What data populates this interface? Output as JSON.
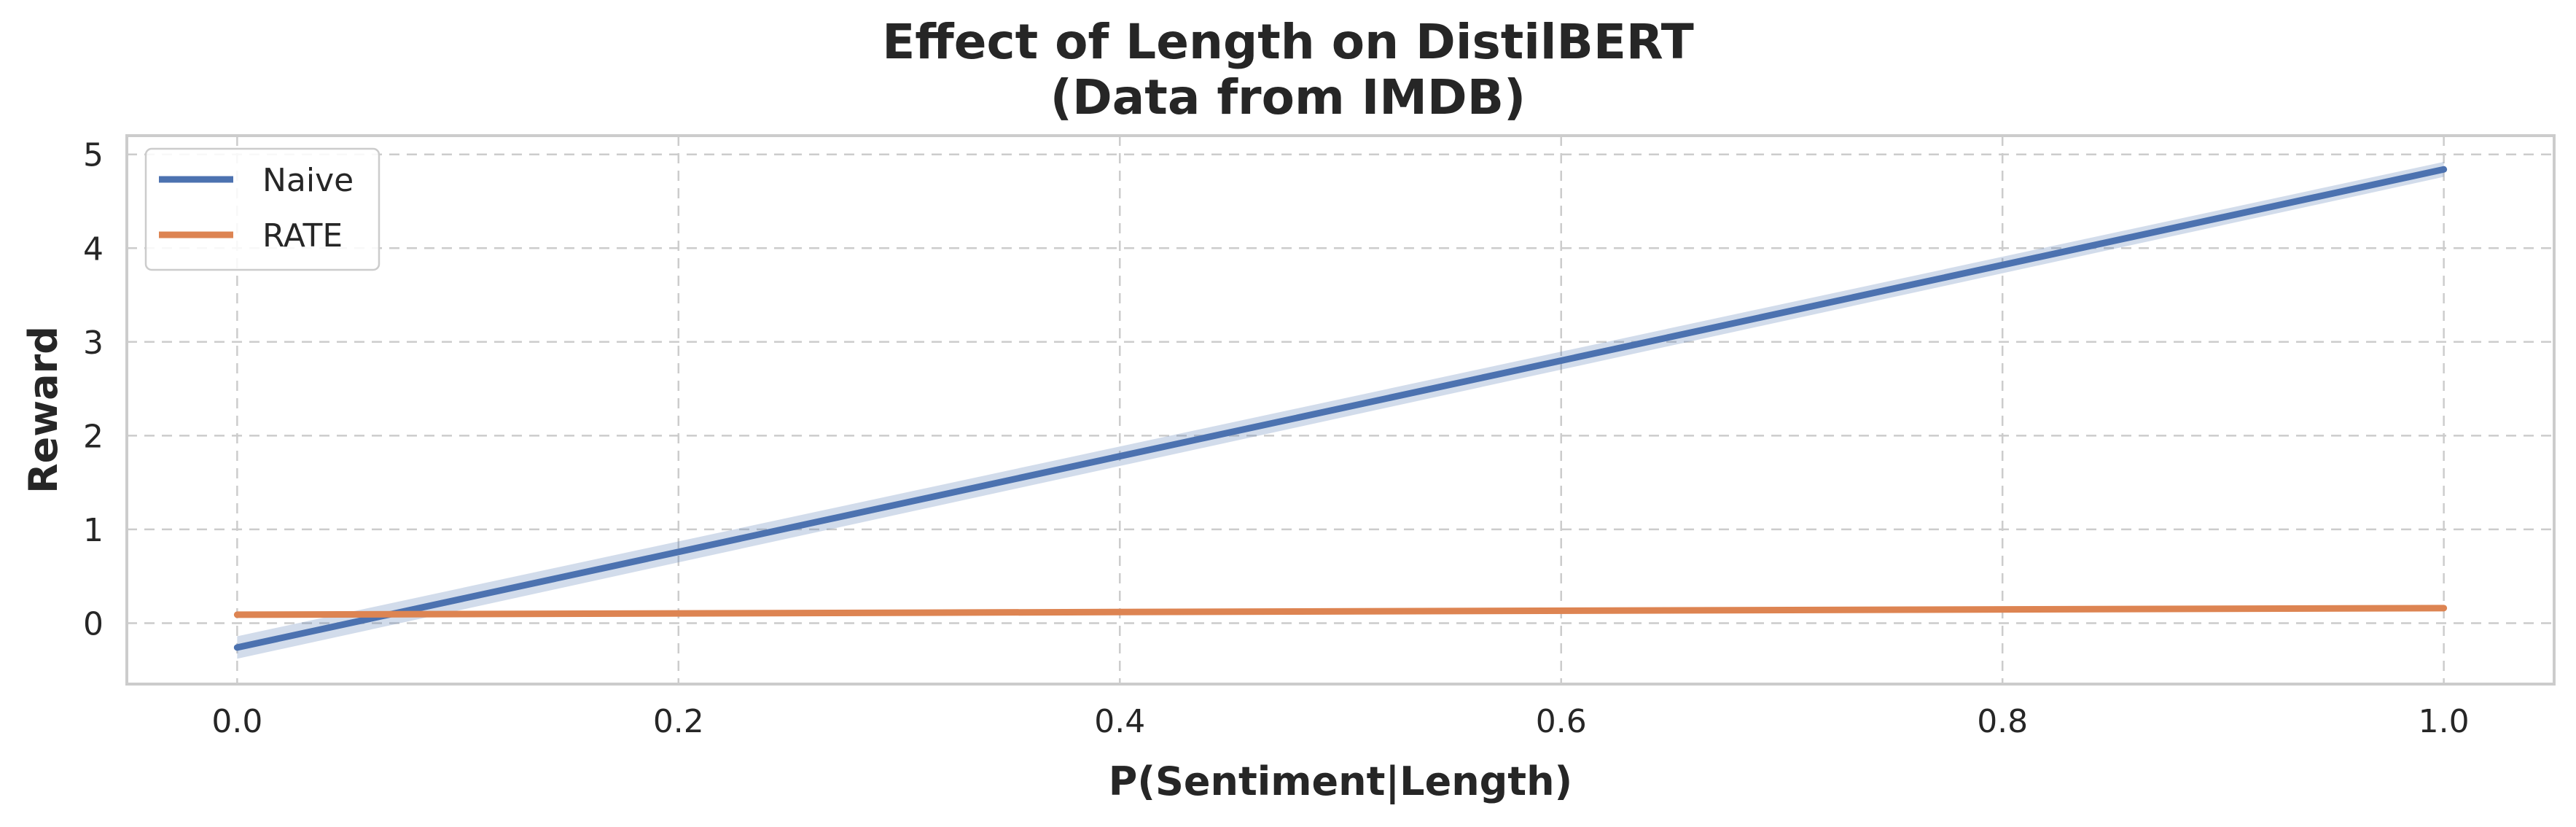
{
  "chart_data": {
    "type": "line",
    "title": "Effect of Length on DistilBERT",
    "subtitle": "(Data from IMDB)",
    "xlabel": "P(Sentiment|Length)",
    "ylabel": "Reward",
    "xlim": [
      -0.05,
      1.05
    ],
    "ylim": [
      -0.65,
      5.2
    ],
    "xticks": [
      0.0,
      0.2,
      0.4,
      0.6,
      0.8,
      1.0
    ],
    "xtick_labels": [
      "0.0",
      "0.2",
      "0.4",
      "0.6",
      "0.8",
      "1.0"
    ],
    "yticks": [
      0,
      1,
      2,
      3,
      4,
      5
    ],
    "ytick_labels": [
      "0",
      "1",
      "2",
      "3",
      "4",
      "5"
    ],
    "grid": true,
    "legend_position": "top-left",
    "series": [
      {
        "name": "Naive",
        "color": "#4c72b0",
        "x": [
          0.0,
          1.0
        ],
        "y": [
          -0.26,
          4.84
        ],
        "ci_lower": [
          -0.38,
          4.76
        ],
        "ci_upper": [
          -0.14,
          4.92
        ]
      },
      {
        "name": "RATE",
        "color": "#dd8452",
        "x": [
          0.0,
          1.0
        ],
        "y": [
          0.09,
          0.16
        ],
        "ci_lower": [
          0.07,
          0.14
        ],
        "ci_upper": [
          0.11,
          0.18
        ]
      }
    ]
  }
}
